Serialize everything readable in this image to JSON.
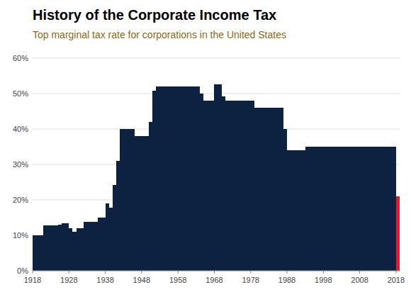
{
  "chart_data": {
    "type": "bar",
    "title": "History of the Corporate Income Tax",
    "subtitle": "Top marginal tax rate for corporations in the United States",
    "x": [
      1918,
      1919,
      1920,
      1921,
      1922,
      1923,
      1924,
      1925,
      1926,
      1927,
      1928,
      1929,
      1930,
      1931,
      1932,
      1933,
      1934,
      1935,
      1936,
      1937,
      1938,
      1939,
      1940,
      1941,
      1942,
      1943,
      1944,
      1945,
      1946,
      1947,
      1948,
      1949,
      1950,
      1951,
      1952,
      1953,
      1954,
      1955,
      1956,
      1957,
      1958,
      1959,
      1960,
      1961,
      1962,
      1963,
      1964,
      1965,
      1966,
      1967,
      1968,
      1969,
      1970,
      1971,
      1972,
      1973,
      1974,
      1975,
      1976,
      1977,
      1978,
      1979,
      1980,
      1981,
      1982,
      1983,
      1984,
      1985,
      1986,
      1987,
      1988,
      1989,
      1990,
      1991,
      1992,
      1993,
      1994,
      1995,
      1996,
      1997,
      1998,
      1999,
      2000,
      2001,
      2002,
      2003,
      2004,
      2005,
      2006,
      2007,
      2008,
      2009,
      2010,
      2011,
      2012,
      2013,
      2014,
      2015,
      2016,
      2017,
      2018
    ],
    "values": [
      0.1,
      0.1,
      0.1,
      0.1275,
      0.1275,
      0.1275,
      0.1275,
      0.13,
      0.135,
      0.135,
      0.12,
      0.11,
      0.12,
      0.12,
      0.1375,
      0.1375,
      0.1375,
      0.1375,
      0.15,
      0.15,
      0.19,
      0.1775,
      0.2425,
      0.31,
      0.4,
      0.4,
      0.4,
      0.4,
      0.38,
      0.38,
      0.38,
      0.38,
      0.42,
      0.5075,
      0.52,
      0.52,
      0.52,
      0.52,
      0.52,
      0.52,
      0.52,
      0.52,
      0.52,
      0.52,
      0.52,
      0.52,
      0.5,
      0.48,
      0.48,
      0.48,
      0.5268,
      0.5268,
      0.4925,
      0.48,
      0.48,
      0.48,
      0.48,
      0.48,
      0.48,
      0.48,
      0.48,
      0.46,
      0.46,
      0.46,
      0.46,
      0.46,
      0.46,
      0.46,
      0.46,
      0.4,
      0.34,
      0.34,
      0.34,
      0.34,
      0.34,
      0.35,
      0.35,
      0.35,
      0.35,
      0.35,
      0.35,
      0.35,
      0.35,
      0.35,
      0.35,
      0.35,
      0.35,
      0.35,
      0.35,
      0.35,
      0.35,
      0.35,
      0.35,
      0.35,
      0.35,
      0.35,
      0.35,
      0.35,
      0.35,
      0.35,
      0.21
    ],
    "colors": [
      "#0d2240",
      "#0d2240",
      "#0d2240",
      "#0d2240",
      "#0d2240",
      "#0d2240",
      "#0d2240",
      "#0d2240",
      "#0d2240",
      "#0d2240",
      "#0d2240",
      "#0d2240",
      "#0d2240",
      "#0d2240",
      "#0d2240",
      "#0d2240",
      "#0d2240",
      "#0d2240",
      "#0d2240",
      "#0d2240",
      "#0d2240",
      "#0d2240",
      "#0d2240",
      "#0d2240",
      "#0d2240",
      "#0d2240",
      "#0d2240",
      "#0d2240",
      "#0d2240",
      "#0d2240",
      "#0d2240",
      "#0d2240",
      "#0d2240",
      "#0d2240",
      "#0d2240",
      "#0d2240",
      "#0d2240",
      "#0d2240",
      "#0d2240",
      "#0d2240",
      "#0d2240",
      "#0d2240",
      "#0d2240",
      "#0d2240",
      "#0d2240",
      "#0d2240",
      "#0d2240",
      "#0d2240",
      "#0d2240",
      "#0d2240",
      "#0d2240",
      "#0d2240",
      "#0d2240",
      "#0d2240",
      "#0d2240",
      "#0d2240",
      "#0d2240",
      "#0d2240",
      "#0d2240",
      "#0d2240",
      "#0d2240",
      "#0d2240",
      "#0d2240",
      "#0d2240",
      "#0d2240",
      "#0d2240",
      "#0d2240",
      "#0d2240",
      "#0d2240",
      "#0d2240",
      "#0d2240",
      "#0d2240",
      "#0d2240",
      "#0d2240",
      "#0d2240",
      "#0d2240",
      "#0d2240",
      "#0d2240",
      "#0d2240",
      "#0d2240",
      "#0d2240",
      "#0d2240",
      "#0d2240",
      "#0d2240",
      "#0d2240",
      "#0d2240",
      "#0d2240",
      "#0d2240",
      "#0d2240",
      "#0d2240",
      "#0d2240",
      "#0d2240",
      "#0d2240",
      "#0d2240",
      "#0d2240",
      "#0d2240",
      "#0d2240",
      "#0d2240",
      "#0d2240",
      "#0d2240",
      "#e8192c"
    ],
    "xlim": [
      1918,
      2019
    ],
    "xticks": [
      1918,
      1928,
      1938,
      1948,
      1958,
      1968,
      1978,
      1988,
      1998,
      2008,
      2018
    ],
    "ylim": [
      0,
      0.6
    ],
    "yticks": [
      {
        "value": 0,
        "label": "0%"
      },
      {
        "value": 0.1,
        "label": "10%"
      },
      {
        "value": 0.2,
        "label": "20%"
      },
      {
        "value": 0.3,
        "label": "30%"
      },
      {
        "value": 0.4,
        "label": "40%"
      },
      {
        "value": 0.5,
        "label": "50%"
      },
      {
        "value": 0.6,
        "label": "60%"
      }
    ],
    "grid": true
  }
}
